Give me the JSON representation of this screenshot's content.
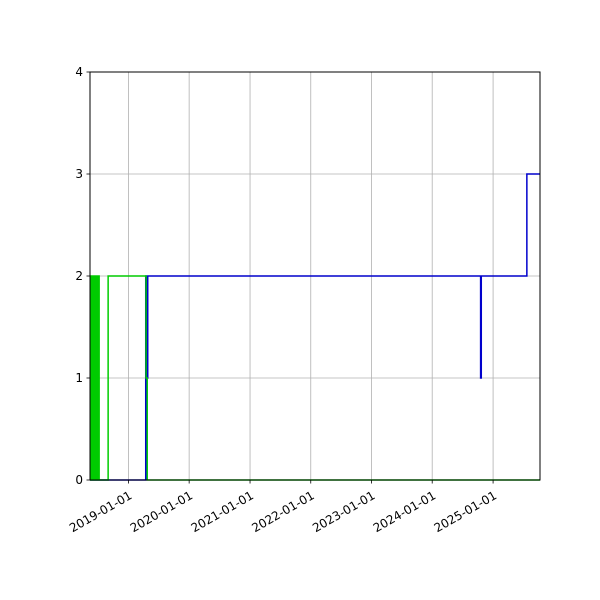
{
  "chart_data": {
    "type": "line",
    "title": "",
    "xlabel": "",
    "ylabel": "",
    "x_axis_type": "date",
    "xlim": [
      "2018-05-15",
      "2025-10-10"
    ],
    "ylim": [
      0,
      4
    ],
    "grid": true,
    "legend": "none",
    "step": "post",
    "x_ticks": [
      "2019-01-01",
      "2020-01-01",
      "2021-01-01",
      "2022-01-01",
      "2023-01-01",
      "2024-01-01",
      "2025-01-01"
    ],
    "y_ticks": [
      0,
      1,
      2,
      3,
      4
    ],
    "series": [
      {
        "color": "#0000cc",
        "points": [
          [
            "2018-05-15",
            0
          ],
          [
            "2019-04-15",
            0
          ],
          [
            "2019-04-15",
            2
          ],
          [
            "2019-04-21",
            2
          ],
          [
            "2019-04-21",
            1
          ],
          [
            "2019-04-27",
            1
          ],
          [
            "2019-04-27",
            2
          ],
          [
            "2024-10-18",
            2
          ],
          [
            "2024-10-18",
            1
          ],
          [
            "2024-10-22",
            1
          ],
          [
            "2024-10-22",
            2
          ],
          [
            "2025-07-23",
            2
          ],
          [
            "2025-07-23",
            3
          ],
          [
            "2025-10-10",
            3
          ]
        ]
      },
      {
        "color": "#00cc00",
        "points": [
          [
            "2018-05-15",
            0
          ],
          [
            "2018-05-22",
            0
          ],
          [
            "2018-05-22",
            2
          ],
          [
            "2018-05-25",
            2
          ],
          [
            "2018-05-25",
            0
          ],
          [
            "2018-05-29",
            0
          ],
          [
            "2018-05-29",
            2
          ],
          [
            "2018-06-02",
            2
          ],
          [
            "2018-06-02",
            0
          ],
          [
            "2018-06-05",
            0
          ],
          [
            "2018-06-05",
            2
          ],
          [
            "2018-06-09",
            2
          ],
          [
            "2018-06-09",
            0
          ],
          [
            "2018-06-13",
            0
          ],
          [
            "2018-06-13",
            2
          ],
          [
            "2018-06-17",
            2
          ],
          [
            "2018-06-17",
            0
          ],
          [
            "2018-06-21",
            0
          ],
          [
            "2018-06-21",
            2
          ],
          [
            "2018-06-24",
            2
          ],
          [
            "2018-06-24",
            0
          ],
          [
            "2018-06-28",
            0
          ],
          [
            "2018-06-28",
            2
          ],
          [
            "2018-07-02",
            2
          ],
          [
            "2018-07-02",
            0
          ],
          [
            "2018-07-06",
            0
          ],
          [
            "2018-07-06",
            2
          ],
          [
            "2018-07-09",
            2
          ],
          [
            "2018-07-09",
            0
          ],
          [
            "2018-09-01",
            0
          ],
          [
            "2018-09-01",
            2
          ],
          [
            "2019-04-17",
            2
          ],
          [
            "2019-04-17",
            1
          ],
          [
            "2019-04-24",
            1
          ],
          [
            "2019-04-24",
            0
          ],
          [
            "2025-10-10",
            0
          ]
        ]
      }
    ]
  }
}
